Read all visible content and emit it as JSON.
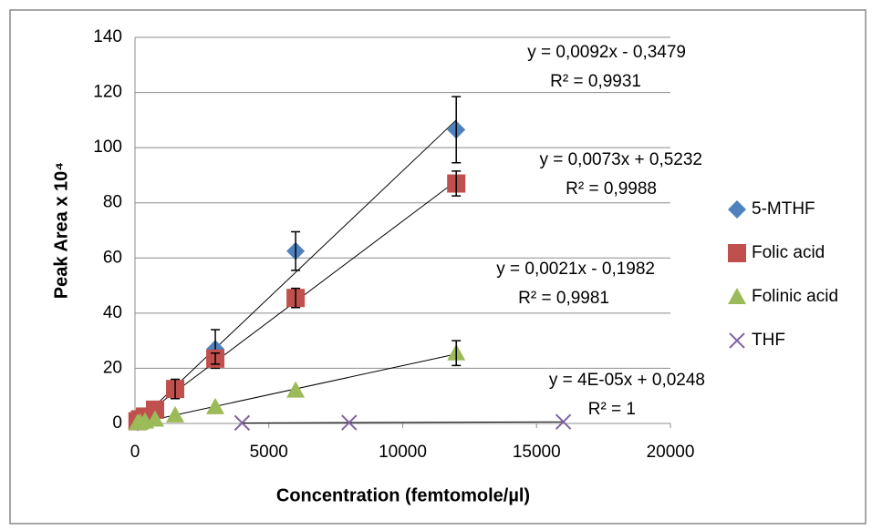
{
  "chart_data": {
    "type": "scatter",
    "xlabel": "Concentration (femtomole/µl)",
    "ylabel": "Peak Area x 10⁴",
    "xlim": [
      0,
      20000
    ],
    "xticks": [
      0,
      5000,
      10000,
      15000,
      20000
    ],
    "ylim": [
      0,
      140
    ],
    "yticks": [
      0,
      20,
      40,
      60,
      80,
      100,
      120,
      140
    ],
    "grid": true,
    "legend": "right",
    "series": [
      {
        "name": "5-MTHF",
        "color": "#4f81bd",
        "marker": "diamond",
        "x": [
          94,
          188,
          375,
          750,
          1500,
          3000,
          6000,
          12000
        ],
        "values": [
          0.5,
          1,
          2,
          5,
          12,
          27,
          62.5,
          106.5
        ],
        "errors": [
          null,
          null,
          null,
          null,
          null,
          7,
          7,
          12
        ]
      },
      {
        "name": "Folic acid",
        "color": "#c0504d",
        "marker": "square",
        "x": [
          94,
          188,
          375,
          750,
          1500,
          3000,
          6000,
          12000
        ],
        "values": [
          0.8,
          1.5,
          2.5,
          5,
          12.5,
          23.5,
          45.5,
          87
        ],
        "errors": [
          null,
          null,
          null,
          null,
          3.5,
          2,
          3.5,
          4.5
        ]
      },
      {
        "name": "Folinic acid",
        "color": "#9bbb59",
        "marker": "triangle",
        "x": [
          94,
          188,
          375,
          750,
          1500,
          3000,
          6000,
          12000
        ],
        "values": [
          0.2,
          0.4,
          0.8,
          1.5,
          3,
          6,
          12,
          25.5
        ],
        "errors": [
          null,
          null,
          null,
          null,
          null,
          null,
          null,
          4.5
        ]
      },
      {
        "name": "THF",
        "color": "#8064a2",
        "marker": "x",
        "x": [
          4000,
          8000,
          16000
        ],
        "values": [
          0.2,
          0.3,
          0.6
        ],
        "errors": [
          null,
          null,
          null
        ]
      }
    ],
    "annotations": [
      "y = 0,0092x - 0,3479",
      "R² = 0,9931",
      "y = 0,0073x + 0,5232",
      "R² = 0,9988",
      "y = 0,0021x - 0,1982",
      "R² = 0,9981",
      "y = 4E-05x + 0,0248",
      "R² = 1"
    ]
  }
}
